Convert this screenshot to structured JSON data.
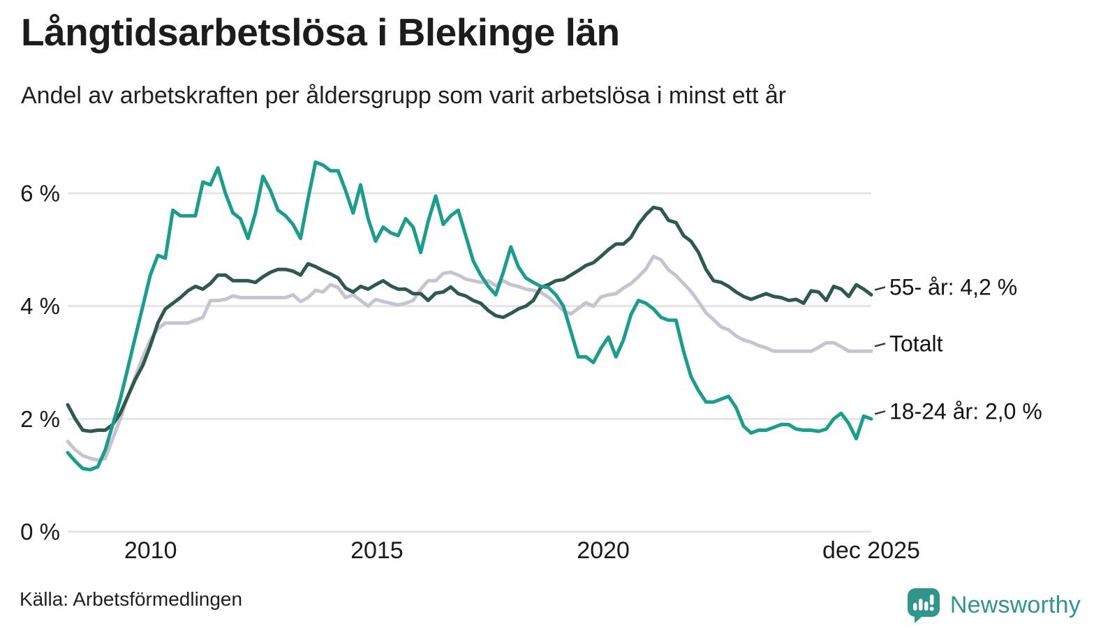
{
  "header": {
    "title": "Långtidsarbetslösa i Blekinge län",
    "subtitle": "Andel av arbetskraften per åldersgrupp som varit arbetslösa i minst ett år"
  },
  "footer": {
    "source": "Källa: Arbetsförmedlingen"
  },
  "branding": {
    "name": "Newsworthy",
    "logo_icon": "speech-bubble-bar-chart-icon",
    "accent_color": "#2e968a"
  },
  "chart_data": {
    "type": "line",
    "title": "Långtidsarbetslösa i Blekinge län",
    "subtitle": "Andel av arbetskraften per åldersgrupp som varit arbetslösa i minst ett år",
    "unit": "%",
    "grid": "horizontal",
    "legend_position": "right-end-labels",
    "x_start": 2008.17,
    "x_end": 2025.92,
    "ylim": [
      0,
      6.65
    ],
    "y_axis": {
      "ticks": [
        {
          "value": 6,
          "label": "6 %"
        },
        {
          "value": 4,
          "label": "4 %"
        },
        {
          "value": 2,
          "label": "2 %"
        },
        {
          "value": 0,
          "label": "0 %"
        }
      ]
    },
    "x_axis": {
      "ticks": [
        {
          "value": 2010,
          "label": "2010"
        },
        {
          "value": 2015,
          "label": "2015"
        },
        {
          "value": 2020,
          "label": "2020"
        },
        {
          "value": 2025.92,
          "label": "dec 2025"
        }
      ]
    },
    "series": [
      {
        "id": "totalt",
        "name": "Totalt",
        "end_label": "Totalt",
        "color": "#c7c4d1",
        "values": [
          1.6,
          1.45,
          1.35,
          1.3,
          1.27,
          1.3,
          1.65,
          2.0,
          2.4,
          2.75,
          3.1,
          3.4,
          3.6,
          3.7,
          3.7,
          3.7,
          3.7,
          3.75,
          3.8,
          4.1,
          4.1,
          4.12,
          4.18,
          4.15,
          4.15,
          4.15,
          4.15,
          4.15,
          4.15,
          4.15,
          4.2,
          4.08,
          4.15,
          4.28,
          4.25,
          4.38,
          4.33,
          4.15,
          4.2,
          4.1,
          4.0,
          4.12,
          4.08,
          4.05,
          4.02,
          4.05,
          4.1,
          4.3,
          4.45,
          4.45,
          4.58,
          4.6,
          4.55,
          4.48,
          4.45,
          4.42,
          4.45,
          4.36,
          4.45,
          4.38,
          4.35,
          4.3,
          4.28,
          4.24,
          4.16,
          4.04,
          3.92,
          3.86,
          3.96,
          4.06,
          4.0,
          4.16,
          4.2,
          4.22,
          4.32,
          4.4,
          4.52,
          4.66,
          4.88,
          4.82,
          4.64,
          4.54,
          4.4,
          4.26,
          4.08,
          3.88,
          3.76,
          3.63,
          3.58,
          3.47,
          3.4,
          3.36,
          3.3,
          3.26,
          3.2,
          3.2,
          3.2,
          3.2,
          3.2,
          3.2,
          3.27,
          3.35,
          3.35,
          3.28,
          3.2,
          3.2,
          3.2,
          3.2
        ]
      },
      {
        "id": "55ar",
        "name": "55- år",
        "end_label": "55- år: 4,2 %",
        "end_value": "4,2 %",
        "color": "#2d594e",
        "values": [
          2.25,
          2.0,
          1.8,
          1.78,
          1.8,
          1.8,
          1.9,
          2.1,
          2.4,
          2.7,
          2.95,
          3.3,
          3.7,
          3.95,
          4.05,
          4.15,
          4.27,
          4.35,
          4.3,
          4.4,
          4.55,
          4.55,
          4.45,
          4.45,
          4.45,
          4.42,
          4.52,
          4.6,
          4.65,
          4.65,
          4.62,
          4.55,
          4.75,
          4.7,
          4.63,
          4.57,
          4.5,
          4.32,
          4.25,
          4.35,
          4.3,
          4.38,
          4.45,
          4.36,
          4.3,
          4.3,
          4.22,
          4.22,
          4.1,
          4.23,
          4.25,
          4.34,
          4.22,
          4.18,
          4.1,
          4.05,
          3.92,
          3.83,
          3.8,
          3.87,
          3.95,
          4.0,
          4.1,
          4.33,
          4.38,
          4.45,
          4.47,
          4.55,
          4.63,
          4.72,
          4.77,
          4.88,
          5.0,
          5.1,
          5.1,
          5.22,
          5.45,
          5.62,
          5.75,
          5.72,
          5.52,
          5.48,
          5.25,
          5.15,
          4.95,
          4.65,
          4.45,
          4.42,
          4.35,
          4.25,
          4.17,
          4.12,
          4.17,
          4.22,
          4.17,
          4.15,
          4.1,
          4.12,
          4.05,
          4.27,
          4.25,
          4.1,
          4.35,
          4.3,
          4.17,
          4.38,
          4.3,
          4.2
        ]
      },
      {
        "id": "18-24ar",
        "name": "18-24 år",
        "end_label": "18-24 år: 2,0 %",
        "end_value": "2,0 %",
        "color": "#189e8b",
        "values": [
          1.4,
          1.25,
          1.12,
          1.1,
          1.15,
          1.45,
          1.9,
          2.35,
          2.9,
          3.45,
          4.0,
          4.55,
          4.9,
          4.85,
          5.7,
          5.6,
          5.6,
          5.6,
          6.2,
          6.15,
          6.45,
          6.0,
          5.65,
          5.55,
          5.2,
          5.65,
          6.3,
          6.05,
          5.7,
          5.6,
          5.45,
          5.2,
          5.9,
          6.55,
          6.5,
          6.4,
          6.4,
          6.05,
          5.65,
          6.15,
          5.55,
          5.15,
          5.4,
          5.3,
          5.25,
          5.55,
          5.4,
          4.95,
          5.5,
          5.95,
          5.45,
          5.6,
          5.7,
          5.25,
          4.8,
          4.55,
          4.35,
          4.2,
          4.6,
          5.05,
          4.7,
          4.5,
          4.42,
          4.35,
          4.33,
          4.2,
          4.0,
          3.55,
          3.1,
          3.1,
          3.0,
          3.25,
          3.45,
          3.1,
          3.4,
          3.85,
          4.1,
          4.05,
          3.95,
          3.8,
          3.75,
          3.75,
          3.2,
          2.75,
          2.5,
          2.3,
          2.3,
          2.35,
          2.4,
          2.2,
          1.87,
          1.75,
          1.8,
          1.8,
          1.85,
          1.9,
          1.9,
          1.82,
          1.8,
          1.8,
          1.78,
          1.82,
          2.0,
          2.1,
          1.92,
          1.65,
          2.05,
          2.0
        ]
      }
    ]
  }
}
